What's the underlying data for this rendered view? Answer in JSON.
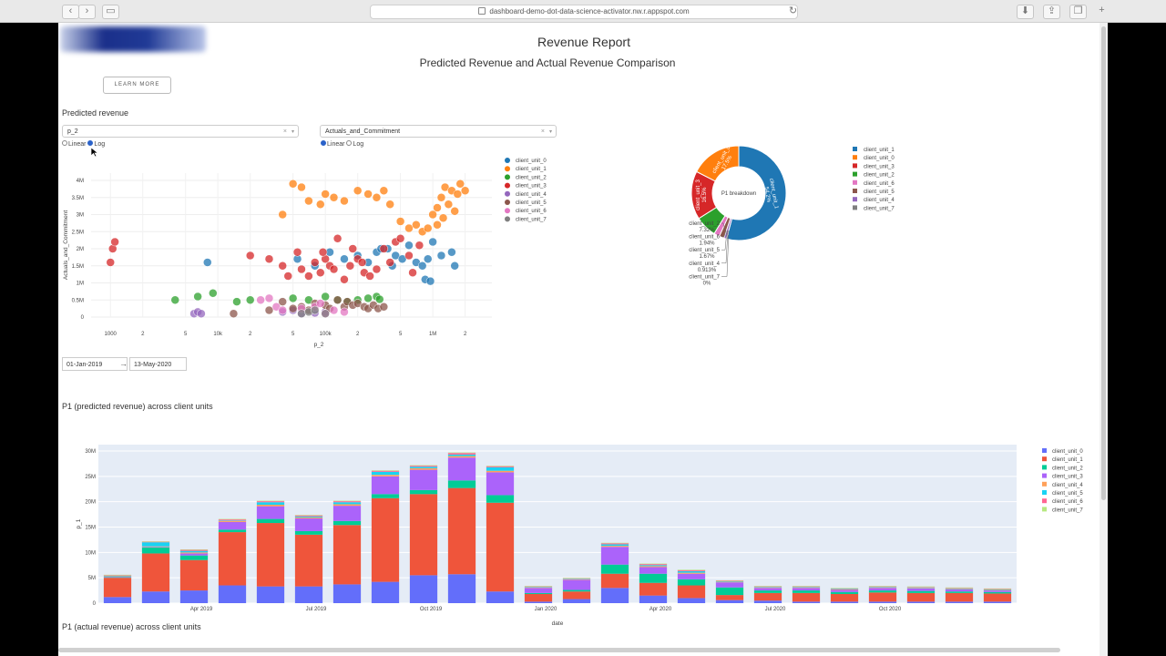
{
  "browser": {
    "url": "dashboard-demo-dot-data-science-activator.nw.r.appspot.com"
  },
  "header": {
    "title": "Revenue Report",
    "subtitle": "Predicted Revenue and Actual Revenue Comparison",
    "learn_more": "LEARN MORE"
  },
  "predicted_section": {
    "heading": "Predicted revenue",
    "x_dropdown": "p_2",
    "y_dropdown": "Actuals_and_Commitment",
    "x_scale_options": [
      "Linear",
      "Log"
    ],
    "x_scale_selected": "Log",
    "y_scale_options": [
      "Linear",
      "Log"
    ],
    "y_scale_selected": "Linear",
    "date_start": "01-Jan-2019",
    "date_end": "13-May-2020"
  },
  "colors": {
    "scatter": [
      "#1f77b4",
      "#ff7f0e",
      "#2ca02c",
      "#d62728",
      "#9467bd",
      "#8c564b",
      "#e377c2",
      "#7f7f7f"
    ],
    "bars": [
      "#636efa",
      "#ef553b",
      "#00cc96",
      "#ab63fa",
      "#ffa15a",
      "#19d3f3",
      "#ff6692",
      "#b6e880"
    ]
  },
  "chart_data": [
    {
      "type": "scatter",
      "xlabel": "p_2",
      "ylabel": "Actuals_and_Commitment",
      "x_scale": "log",
      "x_ticks": [
        "1000",
        "2",
        "5",
        "10k",
        "2",
        "5",
        "100k",
        "2",
        "5",
        "1M",
        "2"
      ],
      "y_ticks": [
        "0",
        "0.5M",
        "1M",
        "1.5M",
        "2M",
        "2.5M",
        "3M",
        "3.5M",
        "4M"
      ],
      "ylim": [
        0,
        4000000
      ],
      "legend": [
        "client_unit_0",
        "client_unit_1",
        "client_unit_2",
        "client_unit_3",
        "client_unit_4",
        "client_unit_5",
        "client_unit_6",
        "client_unit_7"
      ],
      "series": [
        {
          "name": "client_unit_0",
          "points": [
            [
              8000,
              1600000
            ],
            [
              55000,
              1700000
            ],
            [
              80000,
              1500000
            ],
            [
              110000,
              1900000
            ],
            [
              150000,
              1700000
            ],
            [
              200000,
              1800000
            ],
            [
              250000,
              1600000
            ],
            [
              300000,
              1900000
            ],
            [
              380000,
              2000000
            ],
            [
              450000,
              1800000
            ],
            [
              520000,
              1700000
            ],
            [
              600000,
              2100000
            ],
            [
              700000,
              1600000
            ],
            [
              800000,
              1500000
            ],
            [
              900000,
              1700000
            ],
            [
              1000000,
              2200000
            ],
            [
              1200000,
              1800000
            ],
            [
              1500000,
              1900000
            ],
            [
              850000,
              1100000
            ],
            [
              950000,
              1050000
            ],
            [
              1600000,
              1500000
            ],
            [
              420000,
              1500000
            ],
            [
              330000,
              2000000
            ]
          ]
        },
        {
          "name": "client_unit_1",
          "points": [
            [
              40000,
              3000000
            ],
            [
              50000,
              3900000
            ],
            [
              60000,
              3800000
            ],
            [
              70000,
              3400000
            ],
            [
              90000,
              3300000
            ],
            [
              100000,
              3600000
            ],
            [
              120000,
              3500000
            ],
            [
              150000,
              3400000
            ],
            [
              200000,
              3700000
            ],
            [
              250000,
              3600000
            ],
            [
              300000,
              3500000
            ],
            [
              350000,
              3700000
            ],
            [
              400000,
              3300000
            ],
            [
              500000,
              2800000
            ],
            [
              600000,
              2600000
            ],
            [
              700000,
              2700000
            ],
            [
              800000,
              2500000
            ],
            [
              900000,
              2600000
            ],
            [
              1000000,
              3000000
            ],
            [
              1100000,
              3200000
            ],
            [
              1200000,
              3500000
            ],
            [
              1300000,
              3800000
            ],
            [
              1400000,
              3300000
            ],
            [
              1500000,
              3700000
            ],
            [
              1600000,
              3100000
            ],
            [
              1800000,
              3900000
            ],
            [
              2000000,
              3700000
            ],
            [
              1700000,
              3600000
            ],
            [
              1250000,
              2900000
            ],
            [
              1100000,
              2700000
            ]
          ]
        },
        {
          "name": "client_unit_2",
          "points": [
            [
              4000,
              500000
            ],
            [
              6500,
              600000
            ],
            [
              9000,
              700000
            ],
            [
              15000,
              450000
            ],
            [
              20000,
              500000
            ],
            [
              50000,
              550000
            ],
            [
              70000,
              500000
            ],
            [
              100000,
              600000
            ],
            [
              130000,
              500000
            ],
            [
              160000,
              450000
            ],
            [
              200000,
              500000
            ],
            [
              250000,
              550000
            ],
            [
              300000,
              600000
            ],
            [
              320000,
              520000
            ]
          ]
        },
        {
          "name": "client_unit_3",
          "points": [
            [
              1000,
              1600000
            ],
            [
              1050,
              2000000
            ],
            [
              1100,
              2200000
            ],
            [
              20000,
              1800000
            ],
            [
              30000,
              1700000
            ],
            [
              40000,
              1500000
            ],
            [
              45000,
              1200000
            ],
            [
              55000,
              1900000
            ],
            [
              60000,
              1400000
            ],
            [
              70000,
              1200000
            ],
            [
              80000,
              1600000
            ],
            [
              90000,
              1300000
            ],
            [
              100000,
              1700000
            ],
            [
              110000,
              1500000
            ],
            [
              120000,
              1400000
            ],
            [
              130000,
              2300000
            ],
            [
              150000,
              1100000
            ],
            [
              170000,
              1500000
            ],
            [
              200000,
              1700000
            ],
            [
              230000,
              1300000
            ],
            [
              260000,
              1200000
            ],
            [
              300000,
              1400000
            ],
            [
              350000,
              2000000
            ],
            [
              400000,
              1600000
            ],
            [
              450000,
              2200000
            ],
            [
              500000,
              2300000
            ],
            [
              600000,
              1800000
            ],
            [
              650000,
              1300000
            ],
            [
              750000,
              2100000
            ],
            [
              95000,
              1900000
            ],
            [
              180000,
              2000000
            ],
            [
              220000,
              1600000
            ]
          ]
        },
        {
          "name": "client_unit_4",
          "points": [
            [
              6000,
              100000
            ],
            [
              6500,
              150000
            ],
            [
              7000,
              100000
            ],
            [
              40000,
              150000
            ],
            [
              50000,
              200000
            ],
            [
              60000,
              100000
            ],
            [
              80000,
              120000
            ],
            [
              100000,
              150000
            ]
          ]
        },
        {
          "name": "client_unit_5",
          "points": [
            [
              14000,
              100000
            ],
            [
              30000,
              200000
            ],
            [
              40000,
              450000
            ],
            [
              50000,
              250000
            ],
            [
              60000,
              300000
            ],
            [
              70000,
              200000
            ],
            [
              80000,
              400000
            ],
            [
              100000,
              350000
            ],
            [
              110000,
              250000
            ],
            [
              130000,
              500000
            ],
            [
              150000,
              300000
            ],
            [
              160000,
              450000
            ],
            [
              180000,
              350000
            ],
            [
              200000,
              400000
            ],
            [
              230000,
              300000
            ],
            [
              250000,
              250000
            ],
            [
              280000,
              350000
            ],
            [
              310000,
              250000
            ],
            [
              350000,
              300000
            ]
          ]
        },
        {
          "name": "client_unit_6",
          "points": [
            [
              25000,
              500000
            ],
            [
              30000,
              550000
            ],
            [
              35000,
              300000
            ],
            [
              40000,
              200000
            ],
            [
              60000,
              250000
            ],
            [
              80000,
              300000
            ],
            [
              90000,
              400000
            ],
            [
              100000,
              100000
            ],
            [
              120000,
              200000
            ],
            [
              150000,
              150000
            ]
          ]
        },
        {
          "name": "client_unit_7",
          "points": [
            [
              60000,
              100000
            ],
            [
              70000,
              150000
            ],
            [
              80000,
              200000
            ],
            [
              100000,
              100000
            ]
          ]
        }
      ]
    },
    {
      "type": "pie",
      "title": "P1 breakdown",
      "hole": true,
      "labels": [
        "client_unit_1",
        "client_unit_0",
        "client_unit_3",
        "client_unit_2",
        "client_unit_6",
        "client_unit_5",
        "client_unit_4",
        "client_unit_7"
      ],
      "values": [
        54.2,
        17.5,
        16.5,
        7.32,
        1.94,
        1.67,
        0.913,
        0
      ],
      "inside_labels": [
        "client_unit_1\n54.2%",
        "client_unit_0\n17.5%",
        "client_unit_3\n16.5%"
      ],
      "outside_labels": [
        {
          "label": "client_unit_2",
          "pct": "7.32%"
        },
        {
          "label": "client_unit_6",
          "pct": "1.94%"
        },
        {
          "label": "client_unit_5",
          "pct": "1.67%"
        },
        {
          "label": "client_unit_4",
          "pct": "0.913%"
        },
        {
          "label": "client_unit_7",
          "pct": "0%"
        }
      ],
      "legend": [
        "client_unit_1",
        "client_unit_0",
        "client_unit_3",
        "client_unit_2",
        "client_unit_6",
        "client_unit_5",
        "client_unit_4",
        "client_unit_7"
      ]
    },
    {
      "type": "bar",
      "stacked": true,
      "title": "P1 (predicted revenue) across client units",
      "xlabel": "date",
      "ylabel": "p_1",
      "ylim": [
        0,
        30000000
      ],
      "y_ticks": [
        "0",
        "5M",
        "10M",
        "15M",
        "20M",
        "25M",
        "30M"
      ],
      "x_tick_labels": [
        {
          "label": "Apr 2019",
          "index": 3
        },
        {
          "label": "Jul 2019",
          "index": 6
        },
        {
          "label": "Oct 2019",
          "index": 9
        },
        {
          "label": "Jan 2020",
          "index": 12
        },
        {
          "label": "Apr 2020",
          "index": 15
        },
        {
          "label": "Jul 2020",
          "index": 18
        },
        {
          "label": "Oct 2020",
          "index": 21
        }
      ],
      "categories": [
        "Jan 2019",
        "Feb 2019",
        "Mar 2019",
        "Apr 2019",
        "May 2019",
        "Jun 2019",
        "Jul 2019",
        "Aug 2019",
        "Sep 2019",
        "Oct 2019",
        "Nov 2019",
        "Dec 2019",
        "Jan 2020",
        "Feb 2020",
        "Mar 2020",
        "Apr 2020",
        "May 2020",
        "Jun 2020",
        "Jul 2020",
        "Aug 2020",
        "Sep 2020",
        "Oct 2020",
        "Nov 2020",
        "Dec 2020"
      ],
      "series": [
        {
          "name": "client_unit_0",
          "values": [
            1.2,
            2.3,
            2.5,
            3.5,
            3.3,
            3.3,
            3.7,
            4.2,
            5.5,
            5.7,
            2.3,
            0.3,
            0.8,
            3.0,
            1.5,
            1.0,
            0.6,
            0.5,
            0.3,
            0.3,
            0.3,
            0.3,
            0.3,
            0.3
          ]
        },
        {
          "name": "client_unit_1",
          "values": [
            3.8,
            7.5,
            6.0,
            10.5,
            12.5,
            10.2,
            11.7,
            16.5,
            16.0,
            17.0,
            17.5,
            1.5,
            1.5,
            2.8,
            2.5,
            2.5,
            1.0,
            1.5,
            1.7,
            1.5,
            1.8,
            1.7,
            1.7,
            1.6
          ]
        },
        {
          "name": "client_unit_2",
          "values": [
            0.1,
            1.2,
            0.9,
            0.5,
            0.8,
            0.7,
            0.8,
            0.8,
            0.8,
            1.5,
            1.5,
            0.2,
            0.3,
            1.8,
            1.8,
            1.2,
            1.5,
            0.5,
            0.5,
            0.4,
            0.4,
            0.4,
            0.3,
            0.3
          ]
        },
        {
          "name": "client_unit_3",
          "values": [
            0.1,
            0.1,
            0.4,
            1.5,
            2.5,
            2.5,
            3.0,
            3.5,
            4.0,
            4.5,
            4.5,
            1.0,
            2.0,
            3.5,
            1.3,
            1.1,
            1.0,
            0.5,
            0.5,
            0.4,
            0.5,
            0.5,
            0.4,
            0.3
          ]
        },
        {
          "name": "client_unit_4",
          "values": [
            0.1,
            0.1,
            0.2,
            0.2,
            0.3,
            0.2,
            0.3,
            0.3,
            0.3,
            0.3,
            0.3,
            0.1,
            0.1,
            0.2,
            0.2,
            0.2,
            0.1,
            0.1,
            0.1,
            0.1,
            0.1,
            0.1,
            0.1,
            0.1
          ]
        },
        {
          "name": "client_unit_5",
          "values": [
            0.1,
            0.8,
            0.3,
            0.1,
            0.5,
            0.2,
            0.4,
            0.6,
            0.3,
            0.3,
            0.7,
            0.1,
            0.1,
            0.3,
            0.2,
            0.3,
            0.1,
            0.1,
            0.1,
            0.1,
            0.1,
            0.1,
            0.1,
            0.1
          ]
        },
        {
          "name": "client_unit_6",
          "values": [
            0.1,
            0.1,
            0.2,
            0.2,
            0.2,
            0.2,
            0.2,
            0.2,
            0.2,
            0.3,
            0.2,
            0.1,
            0.1,
            0.2,
            0.2,
            0.2,
            0.1,
            0.1,
            0.1,
            0.1,
            0.1,
            0.1,
            0.1,
            0.1
          ]
        },
        {
          "name": "client_unit_7",
          "values": [
            0.1,
            0.1,
            0.1,
            0.1,
            0.1,
            0.1,
            0.1,
            0.1,
            0.1,
            0.1,
            0.1,
            0.1,
            0.1,
            0.1,
            0.1,
            0.1,
            0.1,
            0.1,
            0.1,
            0.1,
            0.1,
            0.1,
            0.1,
            0.1
          ]
        }
      ],
      "legend": [
        "client_unit_0",
        "client_unit_1",
        "client_unit_2",
        "client_unit_3",
        "client_unit_4",
        "client_unit_5",
        "client_unit_6",
        "client_unit_7"
      ]
    }
  ],
  "actual_section": {
    "heading": "P1 (actual revenue) across client units"
  }
}
